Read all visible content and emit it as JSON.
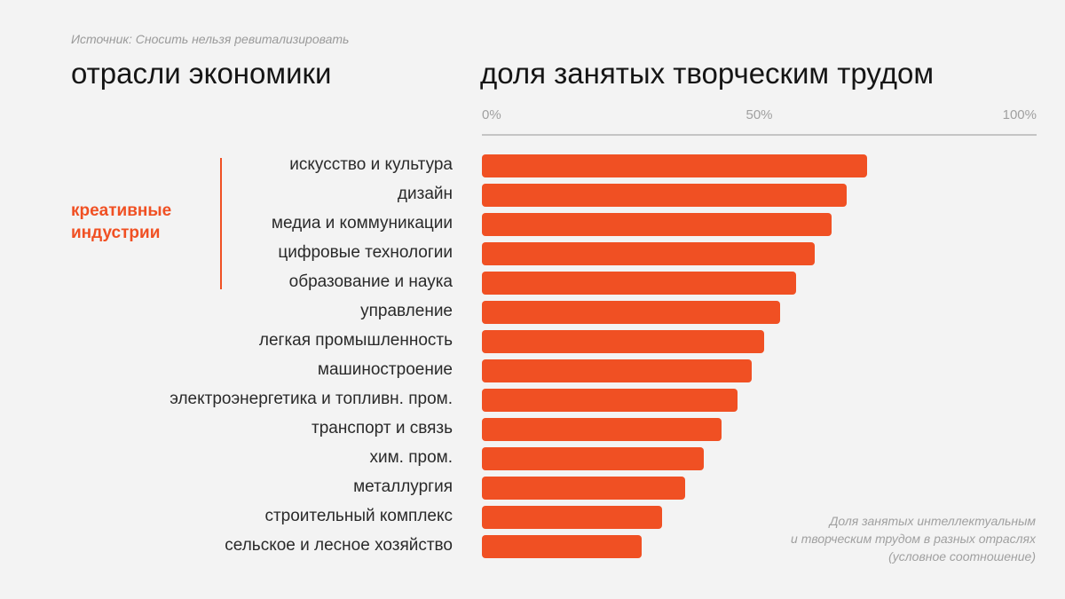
{
  "source": "Источник: Сносить нельзя ревитализировать",
  "left_title": "отрасли экономики",
  "right_title": "доля занятых творческим трудом",
  "group": {
    "label_line1": "креативные",
    "label_line2": "индустрии",
    "count": 5
  },
  "note": {
    "line1": "Доля занятых интеллектуальным",
    "line2": "и творческим трудом в разных отраслях",
    "line3": "(условное соотношение)"
  },
  "colors": {
    "bar": "#f05023",
    "accent": "#f05023"
  },
  "chart_data": {
    "type": "bar",
    "orientation": "horizontal",
    "title": "доля занятых творческим трудом",
    "xlim": [
      0,
      100
    ],
    "ticks": [
      "0%",
      "50%",
      "100%"
    ],
    "tick_values": [
      0,
      50,
      100
    ],
    "categories": [
      "искусство и культура",
      "дизайн",
      "медиа и коммуникации",
      "цифровые технологии",
      "образование и наука",
      "управление",
      "легкая промышленность",
      "машиностроение",
      "электроэнергетика и топливн. пром.",
      "транспорт и связь",
      "хим. пром.",
      "металлургия",
      "строительный комплекс",
      "сельское и лесное хозяйство"
    ],
    "values": [
      69.4,
      65.8,
      63,
      60,
      56.6,
      53.8,
      50.9,
      48.6,
      46,
      43.2,
      40,
      36.6,
      32.5,
      28.8
    ]
  }
}
